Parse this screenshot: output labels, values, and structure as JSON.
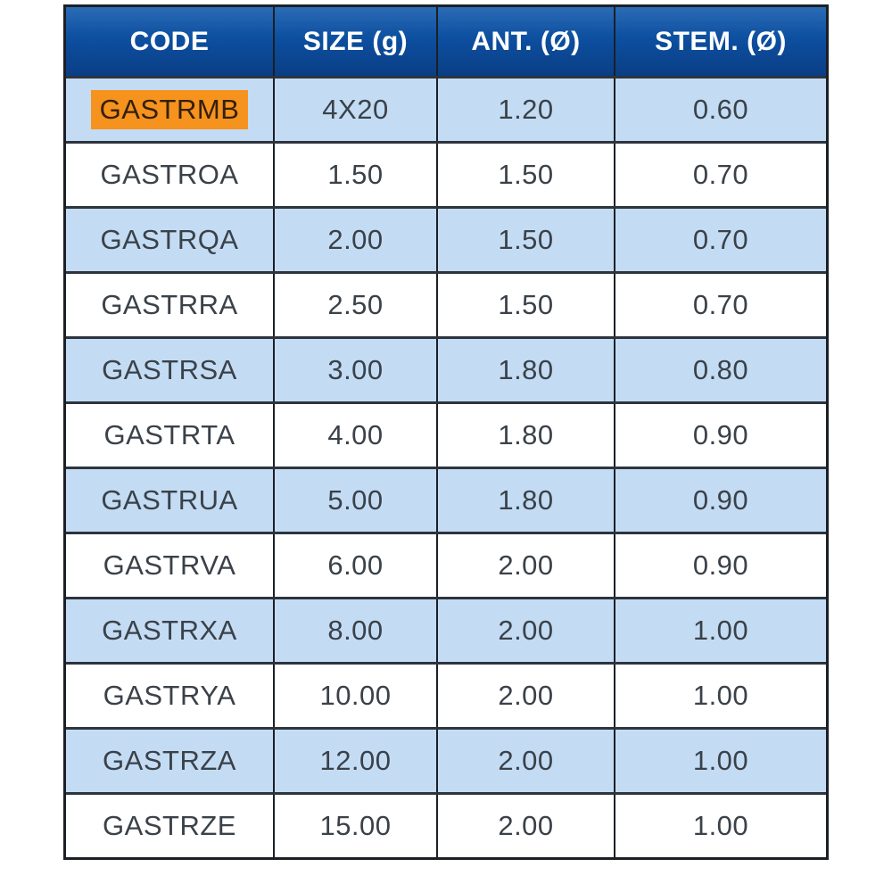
{
  "table": {
    "headers": [
      "CODE",
      "SIZE (g)",
      "ANT. (Ø)",
      "STEM. (Ø)"
    ],
    "highlighted_code": "GASTRMB",
    "rows": [
      {
        "code": "GASTRMB",
        "size": "4X20",
        "ant": "1.20",
        "stem": "0.60"
      },
      {
        "code": "GASTROA",
        "size": "1.50",
        "ant": "1.50",
        "stem": "0.70"
      },
      {
        "code": "GASTRQA",
        "size": "2.00",
        "ant": "1.50",
        "stem": "0.70"
      },
      {
        "code": "GASTRRA",
        "size": "2.50",
        "ant": "1.50",
        "stem": "0.70"
      },
      {
        "code": "GASTRSA",
        "size": "3.00",
        "ant": "1.80",
        "stem": "0.80"
      },
      {
        "code": "GASTRTA",
        "size": "4.00",
        "ant": "1.80",
        "stem": "0.90"
      },
      {
        "code": "GASTRUA",
        "size": "5.00",
        "ant": "1.80",
        "stem": "0.90"
      },
      {
        "code": "GASTRVA",
        "size": "6.00",
        "ant": "2.00",
        "stem": "0.90"
      },
      {
        "code": "GASTRXA",
        "size": "8.00",
        "ant": "2.00",
        "stem": "1.00"
      },
      {
        "code": "GASTRYA",
        "size": "10.00",
        "ant": "2.00",
        "stem": "1.00"
      },
      {
        "code": "GASTRZA",
        "size": "12.00",
        "ant": "2.00",
        "stem": "1.00"
      },
      {
        "code": "GASTRZE",
        "size": "15.00",
        "ant": "2.00",
        "stem": "1.00"
      }
    ]
  },
  "colors": {
    "header_blue_top": "#2a6cb5",
    "header_blue_bottom": "#0a3e85",
    "row_alt_blue": "#c3dcf4",
    "row_white": "#ffffff",
    "highlight_orange": "#f6921e",
    "border_dark": "#1b1f26",
    "cell_text": "#3a4149",
    "header_text": "#ffffff"
  }
}
